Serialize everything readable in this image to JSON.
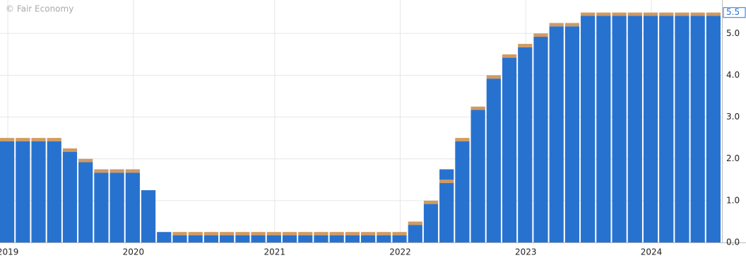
{
  "chart_data": {
    "type": "bar",
    "stacked": true,
    "watermark": "© Fair Economy",
    "categories": [
      "2019",
      null,
      null,
      null,
      null,
      null,
      null,
      null,
      "2020",
      null,
      null,
      null,
      null,
      null,
      null,
      null,
      null,
      "2021",
      null,
      null,
      null,
      null,
      null,
      null,
      null,
      "2022",
      null,
      null,
      null,
      null,
      null,
      null,
      null,
      "2023",
      null,
      null,
      null,
      null,
      null,
      null,
      null,
      "2024",
      null,
      null,
      null,
      null
    ],
    "series": [
      {
        "color": "#2872cf",
        "values": [
          2.42,
          2.42,
          2.42,
          2.42,
          2.17,
          1.92,
          1.67,
          1.67,
          1.67,
          1.25,
          0.25,
          0.17,
          0.17,
          0.17,
          0.17,
          0.17,
          0.17,
          0.17,
          0.17,
          0.17,
          0.17,
          0.17,
          0.17,
          0.17,
          0.17,
          0.17,
          0.42,
          0.92,
          1.42,
          2.42,
          3.17,
          3.92,
          4.42,
          4.67,
          4.92,
          5.17,
          5.17,
          5.42,
          5.42,
          5.42,
          5.42,
          5.42,
          5.42,
          5.42,
          5.42,
          5.42
        ]
      },
      {
        "color": "#d09a62",
        "values": [
          0.08,
          0.08,
          0.08,
          0.08,
          0.08,
          0.08,
          0.08,
          0.08,
          0.08,
          0,
          0,
          0.08,
          0.08,
          0.08,
          0.08,
          0.08,
          0.08,
          0.08,
          0.08,
          0.08,
          0.08,
          0.08,
          0.08,
          0.08,
          0.08,
          0.08,
          0.08,
          0.08,
          0.08,
          0.08,
          0.08,
          0.08,
          0.08,
          0.08,
          0.08,
          0.08,
          0.08,
          0.08,
          0.08,
          0.08,
          0.08,
          0.08,
          0.08,
          0.08,
          0.08,
          0.08
        ]
      },
      {
        "color": "#2872cf",
        "values": [
          0,
          0,
          0,
          0,
          0,
          0,
          0,
          0,
          0,
          0,
          0,
          0,
          0,
          0,
          0,
          0,
          0,
          0,
          0,
          0,
          0,
          0,
          0,
          0,
          0,
          0,
          0,
          0,
          0.25,
          0,
          0,
          0,
          0,
          0,
          0,
          0,
          0,
          0,
          0,
          0,
          0,
          0,
          0,
          0,
          0,
          0
        ]
      }
    ],
    "ylim": [
      0,
      5.8
    ],
    "yticks": [
      {
        "value": 0,
        "label": "0.0"
      },
      {
        "value": 1,
        "label": "1.0"
      },
      {
        "value": 2,
        "label": "2.0"
      },
      {
        "value": 3,
        "label": "3.0"
      },
      {
        "value": 4,
        "label": "4.0"
      },
      {
        "value": 5,
        "label": "5.0"
      }
    ],
    "current_label": {
      "value": 5.5,
      "label": "5.5"
    },
    "grid": true
  }
}
